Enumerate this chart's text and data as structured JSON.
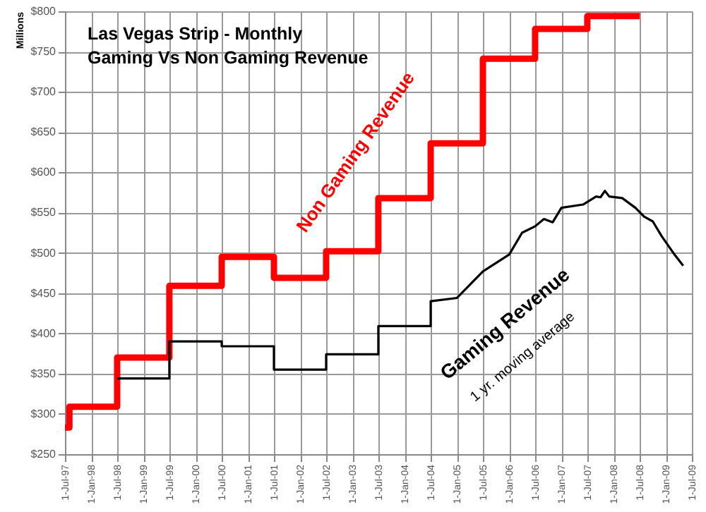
{
  "chart_data": {
    "type": "line",
    "title": "Las Vegas Strip - Monthly\nGaming Vs Non Gaming Revenue",
    "ylabel": "Millions",
    "annotations": [
      "1 yr. moving average"
    ],
    "series": [
      {
        "name": "Non Gaming Revenue",
        "type": "step",
        "color": "#ff0000",
        "x": [
          "1997-07",
          "1997-08",
          "1998-07",
          "1999-07",
          "2000-07",
          "2001-07",
          "2002-07",
          "2003-07",
          "2004-07",
          "2005-07",
          "2006-07",
          "2007-07",
          "2008-07"
        ],
        "values": [
          283,
          309,
          370,
          459,
          495,
          469,
          502,
          568,
          636,
          741,
          778,
          794,
          794
        ]
      },
      {
        "name": "Gaming Revenue",
        "color": "#000000",
        "x": [
          "1998-07",
          "1999-07",
          "1999-07",
          "2000-07",
          "2000-07",
          "2001-07",
          "2001-07",
          "2002-07",
          "2002-07",
          "2003-07",
          "2003-07",
          "2004-07",
          "2004-07",
          "2005-01",
          "2005-07",
          "2006-01",
          "2006-04",
          "2006-07",
          "2006-09",
          "2006-11",
          "2007-01",
          "2007-06",
          "2007-09",
          "2007-10",
          "2007-11",
          "2007-12",
          "2008-03",
          "2008-06",
          "2008-08",
          "2008-10",
          "2008-12",
          "2009-03",
          "2009-05"
        ],
        "values": [
          344,
          344,
          390,
          390,
          384,
          384,
          355,
          355,
          374,
          374,
          409,
          409,
          440,
          444,
          477,
          498,
          525,
          533,
          542,
          538,
          556,
          560,
          570,
          569,
          577,
          570,
          568,
          556,
          545,
          539,
          521,
          498,
          484
        ]
      }
    ],
    "xlim": [
      "1997-07-01",
      "2009-07-01"
    ],
    "xticks": [
      {
        "value": "1997-07-01",
        "label": "1-Jul-97"
      },
      {
        "value": "1998-01-01",
        "label": "1-Jan-98"
      },
      {
        "value": "1998-07-01",
        "label": "1-Jul-98"
      },
      {
        "value": "1999-01-01",
        "label": "1-Jan-99"
      },
      {
        "value": "1999-07-01",
        "label": "1-Jul-99"
      },
      {
        "value": "2000-01-01",
        "label": "1-Jan-00"
      },
      {
        "value": "2000-07-01",
        "label": "1-Jul-00"
      },
      {
        "value": "2001-01-01",
        "label": "1-Jan-01"
      },
      {
        "value": "2001-07-01",
        "label": "1-Jul-01"
      },
      {
        "value": "2002-01-01",
        "label": "1-Jan-02"
      },
      {
        "value": "2002-07-01",
        "label": "1-Jul-02"
      },
      {
        "value": "2003-01-01",
        "label": "1-Jan-03"
      },
      {
        "value": "2003-07-01",
        "label": "1-Jul-03"
      },
      {
        "value": "2004-01-01",
        "label": "1-Jan-04"
      },
      {
        "value": "2004-07-01",
        "label": "1-Jul-04"
      },
      {
        "value": "2005-01-01",
        "label": "1-Jan-05"
      },
      {
        "value": "2005-07-01",
        "label": "1-Jul-05"
      },
      {
        "value": "2006-01-01",
        "label": "1-Jan-06"
      },
      {
        "value": "2006-07-01",
        "label": "1-Jul-06"
      },
      {
        "value": "2007-01-01",
        "label": "1-Jan-07"
      },
      {
        "value": "2007-07-01",
        "label": "1-Jul-07"
      },
      {
        "value": "2008-01-01",
        "label": "1-Jan-08"
      },
      {
        "value": "2008-07-01",
        "label": "1-Jul-08"
      },
      {
        "value": "2009-01-01",
        "label": "1-Jan-09"
      },
      {
        "value": "2009-07-01",
        "label": "1-Jul-09"
      }
    ],
    "ylim": [
      250,
      800
    ],
    "yticks": [
      {
        "value": 250,
        "label": "$250"
      },
      {
        "value": 300,
        "label": "$300"
      },
      {
        "value": 350,
        "label": "$350"
      },
      {
        "value": 400,
        "label": "$400"
      },
      {
        "value": 450,
        "label": "$450"
      },
      {
        "value": 500,
        "label": "$500"
      },
      {
        "value": 550,
        "label": "$550"
      },
      {
        "value": 600,
        "label": "$600"
      },
      {
        "value": 650,
        "label": "$650"
      },
      {
        "value": 700,
        "label": "$700"
      },
      {
        "value": 750,
        "label": "$750"
      },
      {
        "value": 800,
        "label": "$800"
      }
    ],
    "grid": true
  }
}
